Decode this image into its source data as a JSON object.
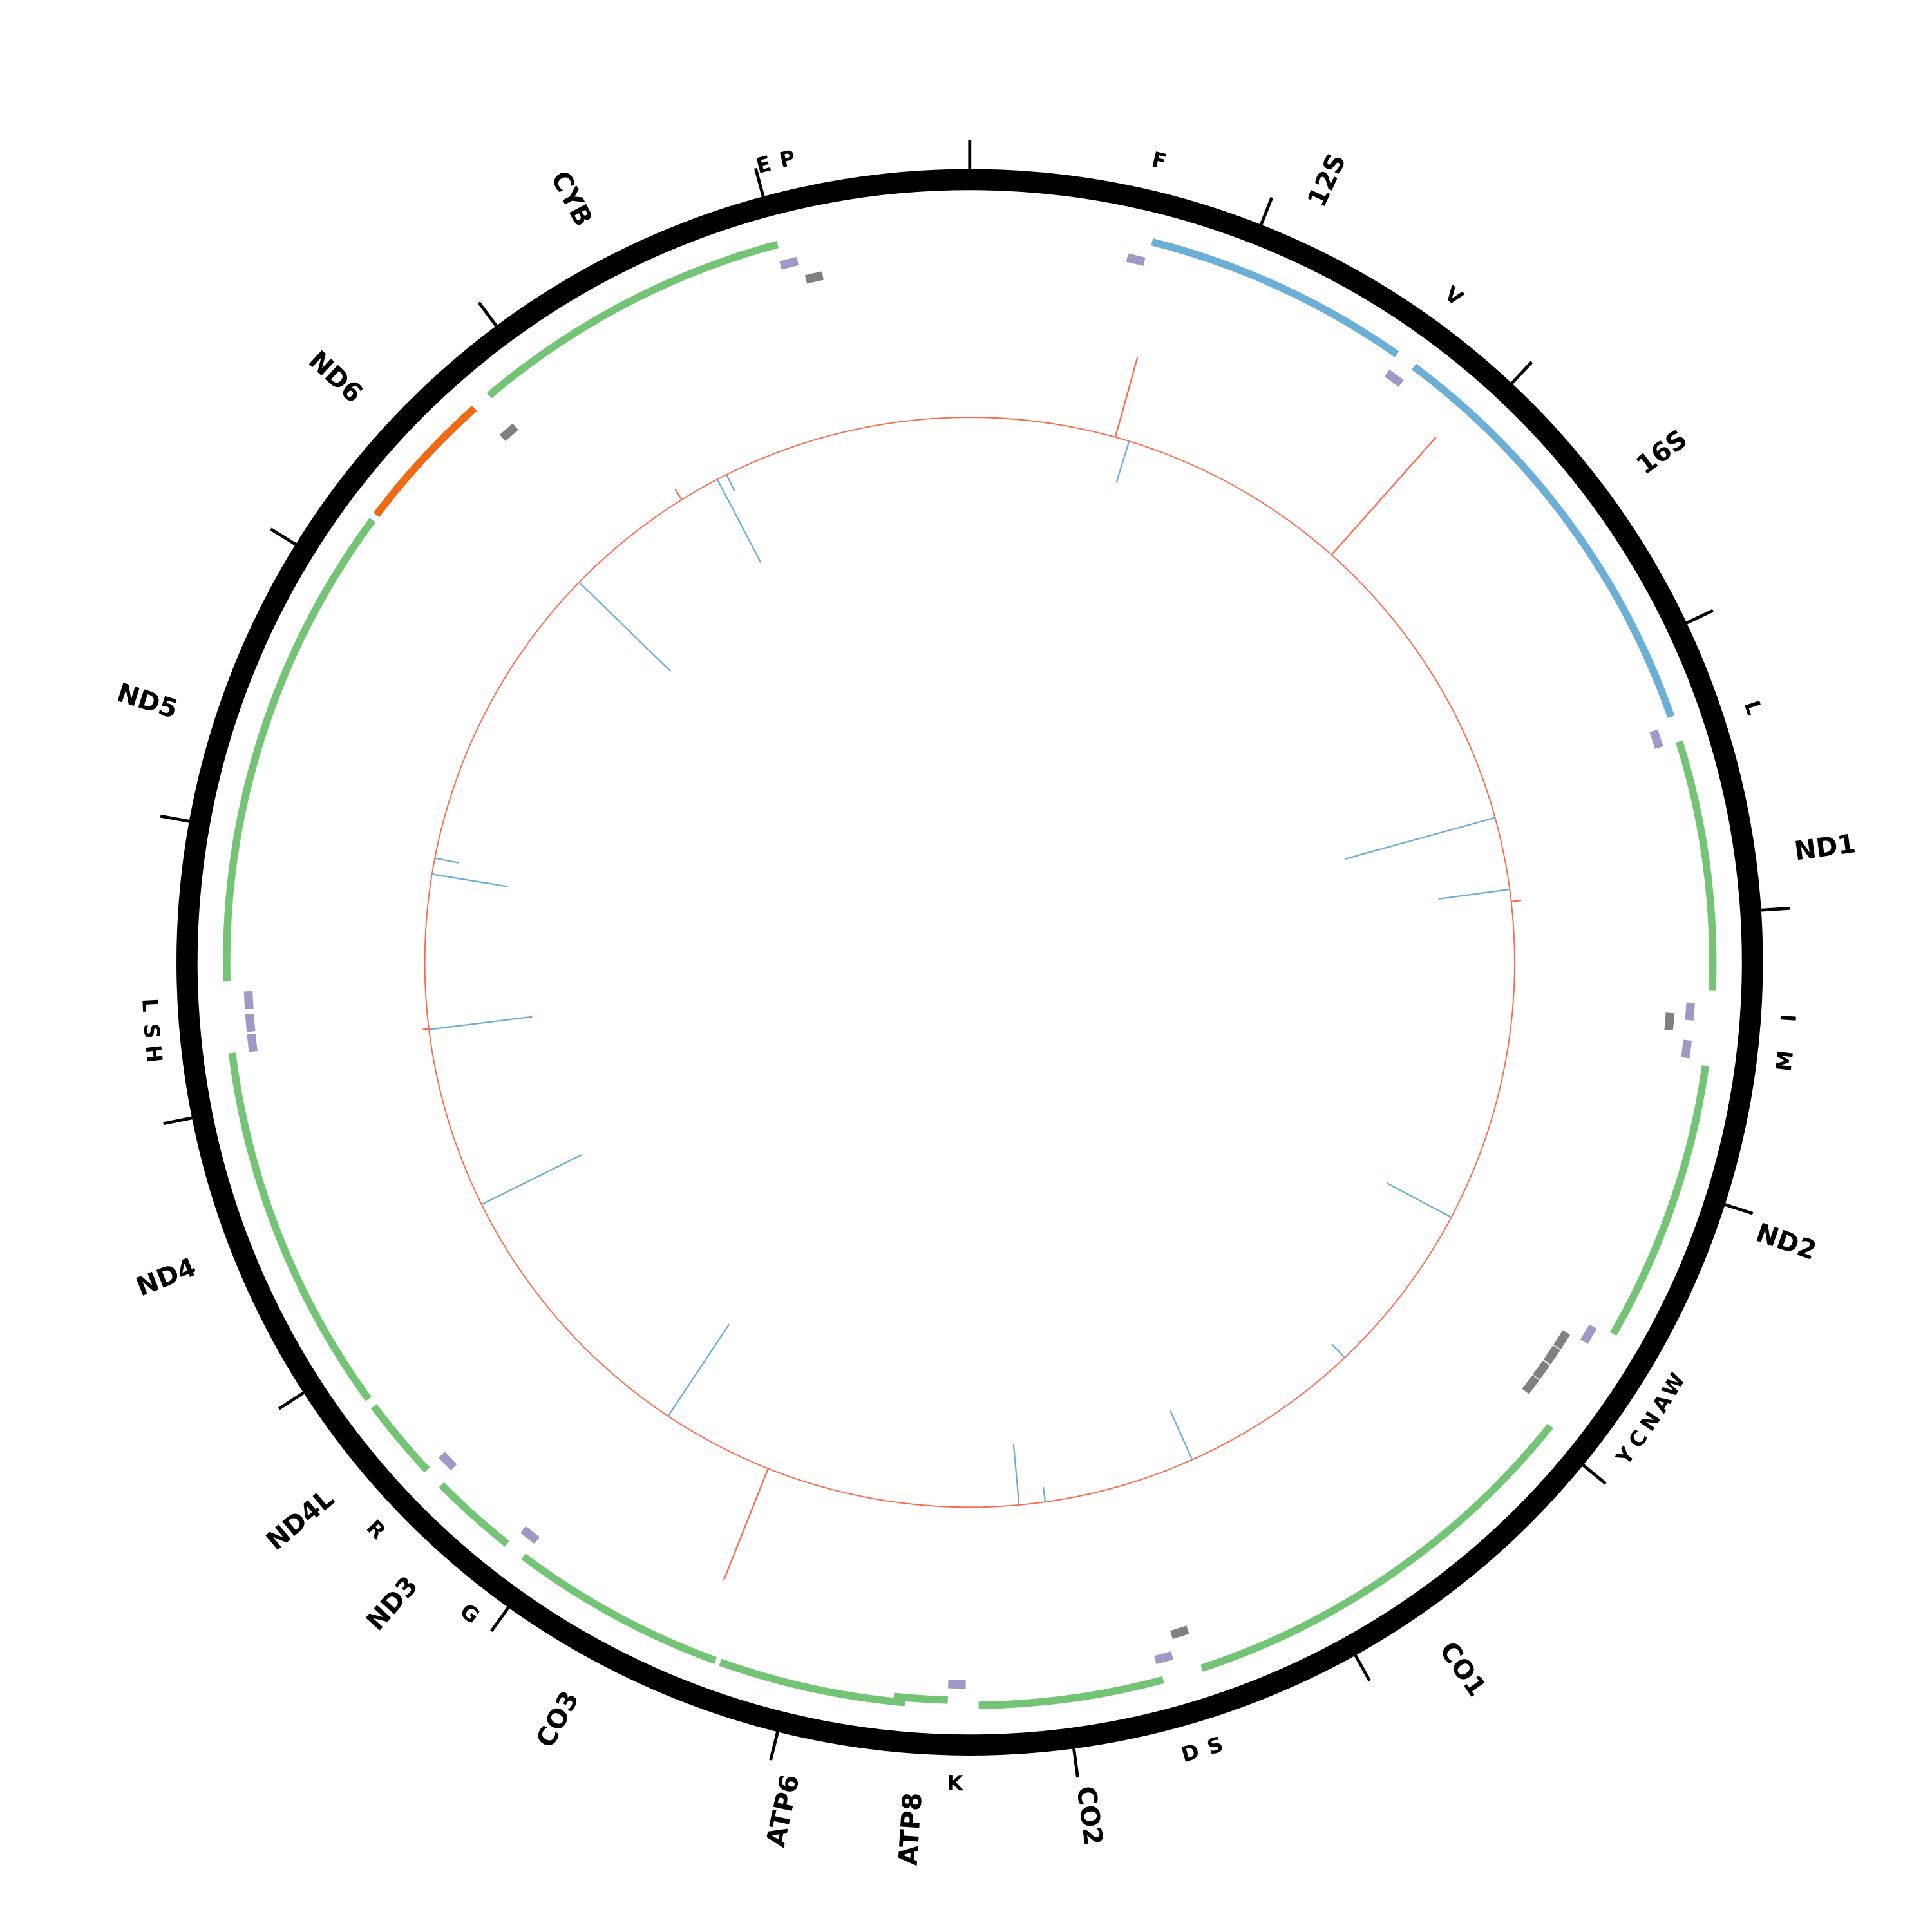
{
  "chart_data": {
    "type": "circular-genome-map",
    "genome_length_bp": 16700,
    "tick_interval_bp": 1000,
    "colors": {
      "backbone": "#000000",
      "protein_coding": "#74c476",
      "protein_coding_reverse": "#f16913",
      "rRNA": "#6baed6",
      "tRNA_forward": "#9e9ac8",
      "tRNA_reverse": "#808080",
      "track_baseline": "#fb6a4a",
      "spike_positive": "#fb6a4a",
      "spike_negative": "#6baed6"
    },
    "genes": [
      {
        "name": "12S",
        "type": "rRNA",
        "start": 659,
        "end": 1628
      },
      {
        "name": "16S",
        "type": "rRNA",
        "start": 1703,
        "end": 3280
      },
      {
        "name": "ND1",
        "type": "protein_coding",
        "start": 3373,
        "end": 4277
      },
      {
        "name": "ND2",
        "type": "protein_coding",
        "start": 4546,
        "end": 5567
      },
      {
        "name": "CO1",
        "type": "protein_coding",
        "start": 5966,
        "end": 7506
      },
      {
        "name": "CO2",
        "type": "protein_coding",
        "start": 7650,
        "end": 8318
      },
      {
        "name": "ATP8",
        "type": "protein_coding",
        "start": 8429,
        "end": 8624
      },
      {
        "name": "ATP6",
        "type": "protein_coding",
        "start": 8582,
        "end": 9260
      },
      {
        "name": "CO3",
        "type": "protein_coding",
        "start": 9278,
        "end": 10062
      },
      {
        "name": "ND3",
        "type": "protein_coding",
        "start": 10136,
        "end": 10452
      },
      {
        "name": "ND4L",
        "type": "protein_coding",
        "start": 10526,
        "end": 10823
      },
      {
        "name": "ND4",
        "type": "protein_coding",
        "start": 10855,
        "end": 12200
      },
      {
        "name": "ND5",
        "type": "protein_coding",
        "start": 12456,
        "end": 14219
      },
      {
        "name": "ND6",
        "type": "protein_coding_reverse",
        "start": 14242,
        "end": 14761
      },
      {
        "name": "CYB",
        "type": "protein_coding",
        "start": 14831,
        "end": 16005
      }
    ],
    "trnas": [
      {
        "name": "F",
        "pos": 617,
        "strand": "forward"
      },
      {
        "name": "V",
        "pos": 1670,
        "strand": "forward"
      },
      {
        "name": "L",
        "pos": 3340,
        "strand": "forward"
      },
      {
        "name": "I",
        "pos": 4356,
        "strand": "forward"
      },
      {
        "name": "",
        "pos": 4399,
        "strand": "reverse"
      },
      {
        "name": "M",
        "pos": 4495,
        "strand": "forward"
      },
      {
        "name": "W",
        "pos": 5613,
        "strand": "forward"
      },
      {
        "name": "A",
        "pos": 5683,
        "strand": "reverse"
      },
      {
        "name": "N",
        "pos": 5752,
        "strand": "reverse"
      },
      {
        "name": "C",
        "pos": 5822,
        "strand": "reverse"
      },
      {
        "name": "Y",
        "pos": 5890,
        "strand": "reverse"
      },
      {
        "name": "S",
        "pos": 7543,
        "strand": "reverse"
      },
      {
        "name": "D",
        "pos": 7627,
        "strand": "forward"
      },
      {
        "name": "K",
        "pos": 8397,
        "strand": "forward"
      },
      {
        "name": "G",
        "pos": 10090,
        "strand": "forward"
      },
      {
        "name": "R",
        "pos": 10498,
        "strand": "forward"
      },
      {
        "name": "H",
        "pos": 12228,
        "strand": "forward"
      },
      {
        "name": "S",
        "pos": 12302,
        "strand": "forward"
      },
      {
        "name": "L",
        "pos": 12386,
        "strand": "forward"
      },
      {
        "name": "",
        "pos": 14798,
        "strand": "reverse"
      },
      {
        "name": "E",
        "pos": 16028,
        "strand": "forward"
      },
      {
        "name": "P",
        "pos": 16107,
        "strand": "reverse"
      }
    ],
    "spikes": [
      {
        "pos": 719,
        "value": 67
      },
      {
        "pos": 789,
        "value": -35
      },
      {
        "pos": 1930,
        "value": 127
      },
      {
        "pos": 3461,
        "value": -126
      },
      {
        "pos": 3818,
        "value": -58
      },
      {
        "pos": 3878,
        "value": 8
      },
      {
        "pos": 5469,
        "value": -59
      },
      {
        "pos": 6333,
        "value": -15
      },
      {
        "pos": 7232,
        "value": -44
      },
      {
        "pos": 7980,
        "value": -12
      },
      {
        "pos": 8109,
        "value": -49
      },
      {
        "pos": 9357,
        "value": 97
      },
      {
        "pos": 9909,
        "value": -89
      },
      {
        "pos": 11301,
        "value": -91
      },
      {
        "pos": 12196,
        "value": -84
      },
      {
        "pos": 12200,
        "value": 5
      },
      {
        "pos": 12957,
        "value": -62
      },
      {
        "pos": 13036,
        "value": -20
      },
      {
        "pos": 14576,
        "value": -103
      },
      {
        "pos": 15220,
        "value": 10
      },
      {
        "pos": 15420,
        "value": -76
      },
      {
        "pos": 15470,
        "value": -15
      }
    ]
  }
}
